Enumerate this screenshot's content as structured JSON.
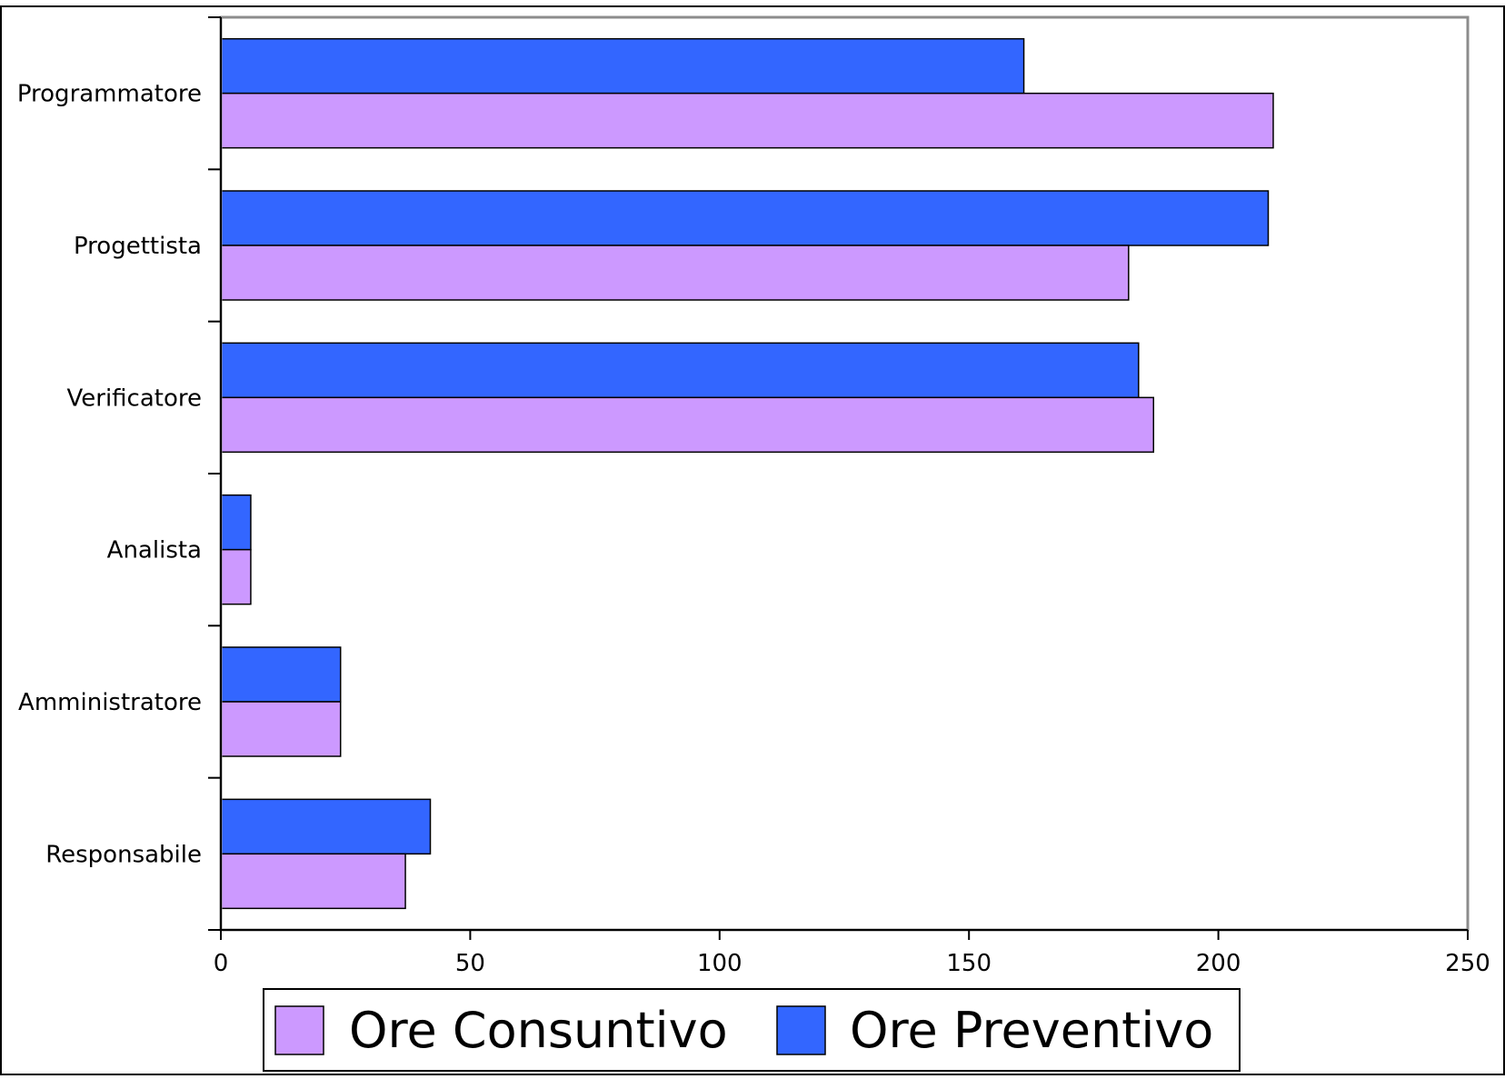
{
  "chart_data": {
    "type": "bar",
    "orientation": "horizontal",
    "categories": [
      "Responsabile",
      "Amministratore",
      "Analista",
      "Verificatore",
      "Progettista",
      "Programmatore"
    ],
    "series": [
      {
        "name": "Ore Consuntivo",
        "values": [
          37,
          24,
          6,
          187,
          182,
          211
        ],
        "color": "#cc99ff"
      },
      {
        "name": "Ore Preventivo",
        "values": [
          42,
          24,
          6,
          184,
          210,
          161
        ],
        "color": "#3366ff"
      }
    ],
    "x_ticks": [
      "0",
      "50",
      "100",
      "150",
      "200",
      "250"
    ],
    "xlim": [
      0,
      250
    ],
    "title": "",
    "xlabel": "",
    "ylabel": "",
    "grid": false,
    "legend_position": "bottom-center"
  }
}
